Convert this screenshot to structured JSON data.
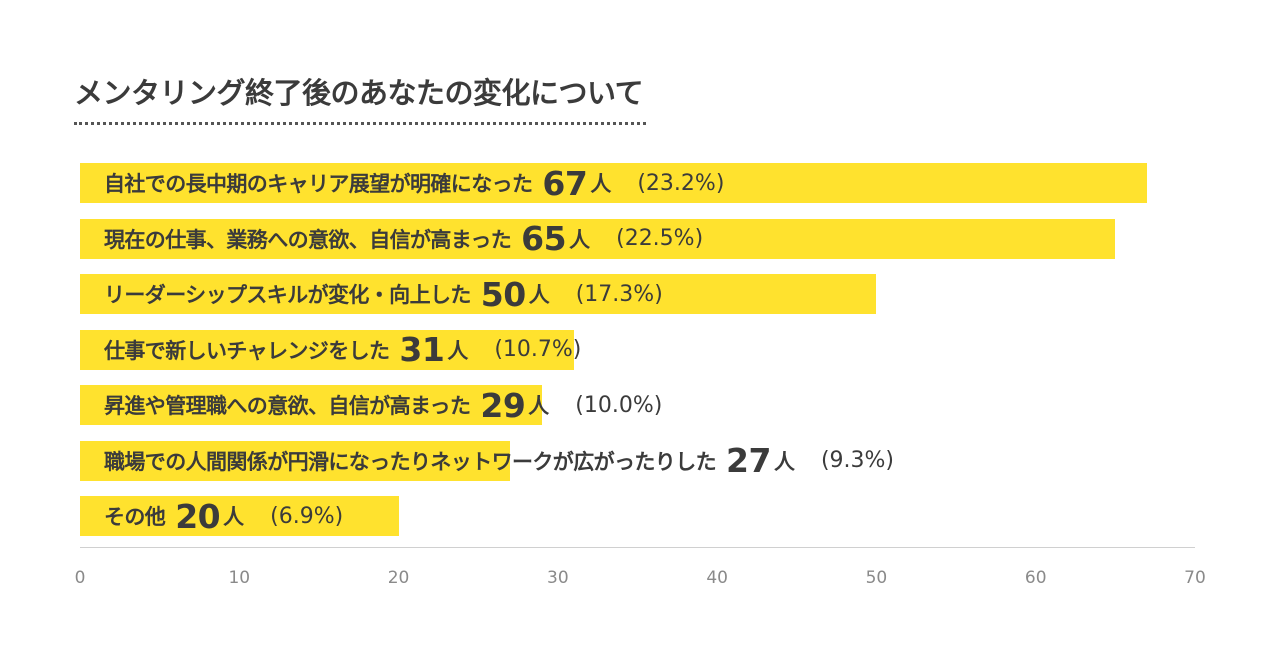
{
  "colors": {
    "bar": "#ffe22e",
    "text": "#3b3b3b",
    "axis": "#8a8a8a"
  },
  "chart_data": {
    "type": "bar",
    "orientation": "horizontal",
    "title": "メンタリング終了後のあなたの変化について",
    "unit": "人",
    "categories": [
      "自社での長中期のキャリア展望が明確になった",
      "現在の仕事、業務への意欲、自信が高まった",
      "リーダーシップスキルが変化・向上した",
      "仕事で新しいチャレンジをした",
      "昇進や管理職への意欲、自信が高まった",
      "職場での人間関係が円滑になったりネットワークが広がったりした",
      "その他"
    ],
    "values": [
      67,
      65,
      50,
      31,
      29,
      27,
      20
    ],
    "percentages": [
      "(23.2%)",
      "(22.5%)",
      "(17.3%)",
      "(10.7%)",
      "(10.0%)",
      "(9.3%)",
      "(6.9%)"
    ],
    "xlim": [
      0,
      70
    ],
    "xticks": [
      "0",
      "10",
      "20",
      "30",
      "40",
      "50",
      "60",
      "70"
    ],
    "grid": false
  }
}
